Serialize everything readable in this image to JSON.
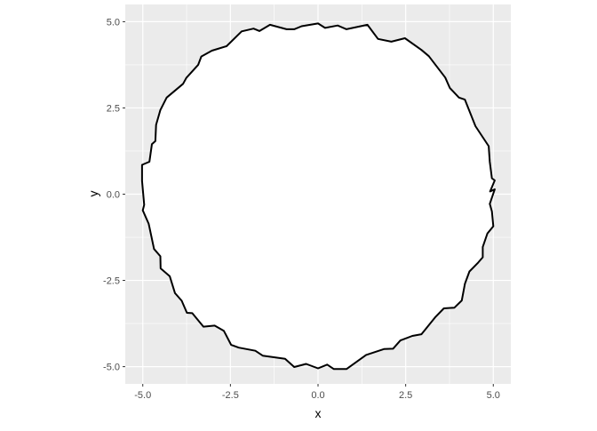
{
  "chart_data": {
    "type": "polygon",
    "title": "",
    "xlabel": "x",
    "ylabel": "y",
    "xlim": [
      -5.5,
      5.5
    ],
    "ylim": [
      -5.5,
      5.5
    ],
    "x_ticks": [
      -5.0,
      -2.5,
      0.0,
      2.5,
      5.0
    ],
    "x_tick_labels": [
      "-5.0",
      "-2.5",
      "0.0",
      "2.5",
      "5.0"
    ],
    "y_ticks": [
      -5.0,
      -2.5,
      0.0,
      2.5,
      5.0
    ],
    "y_tick_labels": [
      "-5.0",
      "-2.5",
      "0.0",
      "2.5",
      "5.0"
    ],
    "grid": true,
    "aspect": "equal",
    "fill_color": "#ffffff",
    "line_color": "#000000",
    "panel_background": "#ebebeb",
    "x": [
      -4.96,
      -5.02,
      -5.02,
      -4.81,
      -4.74,
      -4.64,
      -4.62,
      -4.5,
      -4.32,
      -3.85,
      -3.76,
      -3.42,
      -3.33,
      -3.03,
      -2.61,
      -2.18,
      -1.84,
      -1.67,
      -1.37,
      -0.9,
      -0.68,
      -0.47,
      0.0,
      0.2,
      0.56,
      0.81,
      1.41,
      1.71,
      2.09,
      2.48,
      2.95,
      3.16,
      3.63,
      3.76,
      4.02,
      4.19,
      4.49,
      4.87,
      4.9,
      4.96,
      5.04,
      4.91,
      5.04,
      4.9,
      4.96,
      5.0,
      4.83,
      4.7,
      4.7,
      4.57,
      4.32,
      4.19,
      4.1,
      3.89,
      3.59,
      3.34,
      2.95,
      2.69,
      2.35,
      2.14,
      1.88,
      1.37,
      0.81,
      0.45,
      0.26,
      0.0,
      -0.34,
      -0.68,
      -0.94,
      -1.58,
      -1.79,
      -2.26,
      -2.48,
      -2.69,
      -2.95,
      -3.27,
      -3.59,
      -3.74,
      -3.89,
      -4.08,
      -4.23,
      -4.49,
      -4.5,
      -4.68,
      -4.83,
      -5.0
    ],
    "y": [
      -0.31,
      0.38,
      0.85,
      0.94,
      1.45,
      1.54,
      2.01,
      2.44,
      2.8,
      3.2,
      3.37,
      3.75,
      3.99,
      4.16,
      4.29,
      4.72,
      4.8,
      4.73,
      4.91,
      4.78,
      4.78,
      4.87,
      4.95,
      4.82,
      4.89,
      4.78,
      4.91,
      4.5,
      4.42,
      4.52,
      4.18,
      4.0,
      3.38,
      3.08,
      2.8,
      2.74,
      1.97,
      1.39,
      0.94,
      0.46,
      0.4,
      0.08,
      0.14,
      -0.28,
      -0.5,
      -0.93,
      -1.14,
      -1.53,
      -1.83,
      -1.98,
      -2.24,
      -2.6,
      -3.08,
      -3.29,
      -3.31,
      -3.57,
      -4.06,
      -4.11,
      -4.24,
      -4.48,
      -4.49,
      -4.66,
      -5.07,
      -5.07,
      -4.94,
      -5.05,
      -4.92,
      -5.01,
      -4.77,
      -4.68,
      -4.54,
      -4.45,
      -4.37,
      -3.96,
      -3.81,
      -3.84,
      -3.45,
      -3.44,
      -3.09,
      -2.87,
      -2.38,
      -2.15,
      -1.8,
      -1.59,
      -0.86,
      -0.47
    ]
  }
}
